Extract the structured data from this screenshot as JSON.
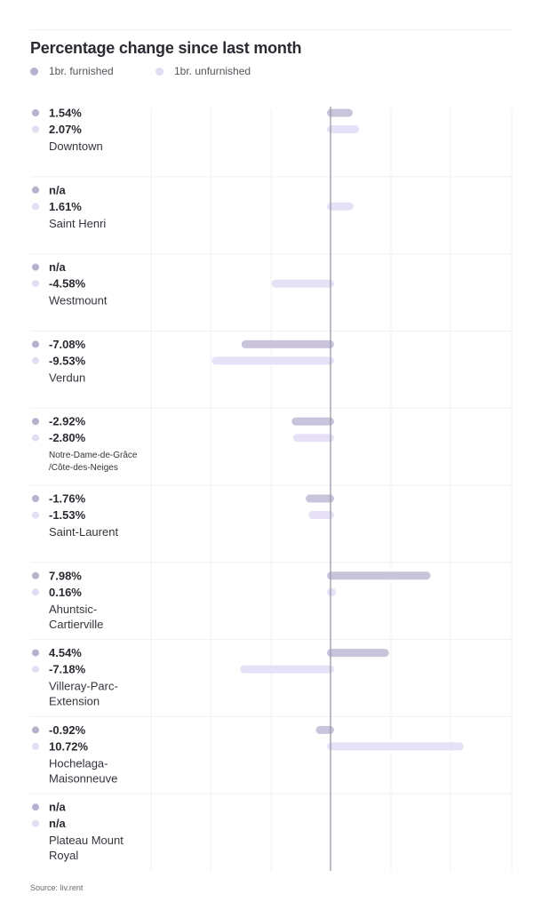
{
  "chart_data": {
    "type": "bar",
    "orientation": "horizontal",
    "title": "Percentage change since last month",
    "legend": {
      "placement": "top-left"
    },
    "series": [
      {
        "name": "1br. furnished",
        "color": "#c9c3dc",
        "values": [
          1.54,
          null,
          null,
          -7.08,
          -2.92,
          -1.76,
          7.98,
          4.54,
          -0.92,
          null
        ]
      },
      {
        "name": "1br. unfurnished",
        "color": "#e6e1f7",
        "values": [
          2.07,
          1.61,
          -4.58,
          -9.53,
          -2.8,
          -1.53,
          0.16,
          -7.18,
          10.72,
          null
        ]
      }
    ],
    "value_labels": [
      [
        "1.54%",
        "2.07%"
      ],
      [
        "n/a",
        "1.61%"
      ],
      [
        "n/a",
        "-4.58%"
      ],
      [
        "-7.08%",
        "-9.53%"
      ],
      [
        "-2.92%",
        "-2.80%"
      ],
      [
        "-1.76%",
        "-1.53%"
      ],
      [
        "7.98%",
        "0.16%"
      ],
      [
        "4.54%",
        "-7.18%"
      ],
      [
        "-0.92%",
        "10.72%"
      ],
      [
        "n/a",
        "n/a"
      ]
    ],
    "categories": [
      [
        "Downtown"
      ],
      [
        "Saint Henri"
      ],
      [
        "Westmount"
      ],
      [
        "Verdun"
      ],
      [
        "Notre-Dame-de-Grâce",
        "/Côte-des-Neiges"
      ],
      [
        "Saint-Laurent"
      ],
      [
        "Ahuntsic-",
        "Cartierville"
      ],
      [
        "Villeray-Parc-",
        "Extension"
      ],
      [
        "Hochelaga-",
        "Maisonneuve"
      ],
      [
        "Plateau Mount",
        "Royal"
      ]
    ],
    "xlim": [
      -10,
      11
    ],
    "grid": true
  },
  "source": "Source: liv.rent",
  "colors": {
    "furnished_dot": "#b8b0cf",
    "unfurnished_dot": "#e2ddf3",
    "zero_line": "#9b98a6",
    "grid": "#f0f0f3"
  }
}
